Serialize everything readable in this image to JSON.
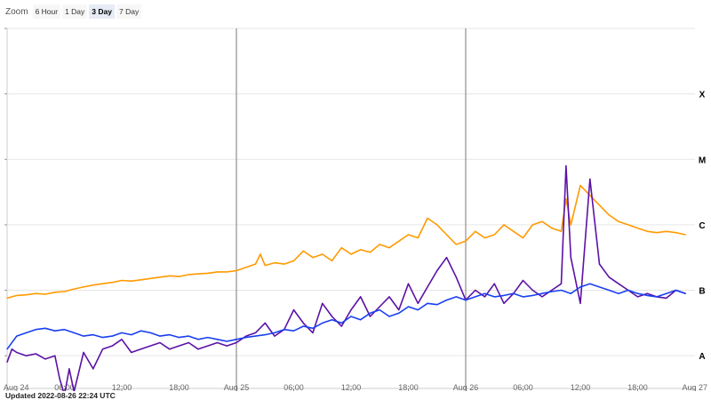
{
  "zoom": {
    "label": "Zoom",
    "buttons": [
      {
        "label": "6 Hour",
        "active": false
      },
      {
        "label": "1 Day",
        "active": false
      },
      {
        "label": "3 Day",
        "active": true
      },
      {
        "label": "7 Day",
        "active": false
      }
    ]
  },
  "updated_text": "Updated 2022-08-26 22:24 UTC",
  "colors": {
    "long_channel": "#ff9a00",
    "long_channel_alt": "#ff2020",
    "short_channel": "#1a3ff0",
    "short_channel_alt": "#5b12a6",
    "grid": "#e6e6e6",
    "day_line": "#777777"
  },
  "chart_data": {
    "type": "line",
    "title": "",
    "x_unit": "hours since start of Aug 24 UTC",
    "xlim": [
      0,
      72
    ],
    "ylim": [
      -8.5,
      -3.0
    ],
    "y_scale": "log10 flux",
    "x_ticks": [
      {
        "x": 0,
        "label": "Aug 24"
      },
      {
        "x": 6,
        "label": "06:00"
      },
      {
        "x": 12,
        "label": "12:00"
      },
      {
        "x": 18,
        "label": "18:00"
      },
      {
        "x": 24,
        "label": "Aug 25"
      },
      {
        "x": 30,
        "label": "06:00"
      },
      {
        "x": 36,
        "label": "12:00"
      },
      {
        "x": 42,
        "label": "18:00"
      },
      {
        "x": 48,
        "label": "Aug 26"
      },
      {
        "x": 54,
        "label": "06:00"
      },
      {
        "x": 60,
        "label": "12:00"
      },
      {
        "x": 66,
        "label": "18:00"
      },
      {
        "x": 72,
        "label": "Aug 27"
      }
    ],
    "day_boundaries": [
      24,
      48
    ],
    "flare_classes": [
      {
        "label": "X",
        "y": -4.0
      },
      {
        "label": "M",
        "y": -5.0
      },
      {
        "label": "C",
        "y": -6.0
      },
      {
        "label": "B",
        "y": -7.0
      },
      {
        "label": "A",
        "y": -8.0
      }
    ],
    "grid": true,
    "series": [
      {
        "color": "#ff9a00",
        "x": [
          0,
          1,
          2,
          3,
          4,
          5,
          6,
          7,
          8,
          9,
          10,
          11,
          12,
          13,
          14,
          15,
          16,
          17,
          18,
          19,
          20,
          21,
          22,
          23,
          24,
          25,
          26,
          26.5,
          27,
          28,
          29,
          30,
          31,
          32,
          33,
          34,
          35,
          36,
          37,
          38,
          39,
          40,
          41,
          42,
          43,
          44,
          45,
          46,
          47,
          48,
          49,
          50,
          51,
          52,
          53,
          54,
          55,
          56,
          57,
          58,
          58.5,
          59,
          60,
          61,
          62,
          63,
          64,
          65,
          66,
          67,
          68,
          69,
          70,
          71
        ],
        "y": [
          -7.12,
          -7.08,
          -7.07,
          -7.05,
          -7.06,
          -7.03,
          -7.02,
          -6.98,
          -6.95,
          -6.92,
          -6.9,
          -6.88,
          -6.85,
          -6.86,
          -6.84,
          -6.82,
          -6.8,
          -6.78,
          -6.79,
          -6.76,
          -6.75,
          -6.74,
          -6.72,
          -6.72,
          -6.7,
          -6.65,
          -6.6,
          -6.45,
          -6.62,
          -6.58,
          -6.6,
          -6.55,
          -6.4,
          -6.5,
          -6.45,
          -6.55,
          -6.35,
          -6.45,
          -6.38,
          -6.42,
          -6.3,
          -6.35,
          -6.25,
          -6.15,
          -6.2,
          -5.9,
          -6.0,
          -6.15,
          -6.3,
          -6.25,
          -6.1,
          -6.2,
          -6.15,
          -6.0,
          -6.1,
          -6.2,
          -6.0,
          -5.95,
          -6.05,
          -6.1,
          -5.6,
          -6.0,
          -5.4,
          -5.55,
          -5.7,
          -5.85,
          -5.95,
          -6.0,
          -6.05,
          -6.1,
          -6.12,
          -6.1,
          -6.12,
          -6.15
        ]
      },
      {
        "color": "#5b12a6",
        "x": [
          0,
          0.5,
          1,
          2,
          3,
          4,
          5,
          5.5,
          6,
          6.5,
          7,
          8,
          9,
          10,
          11,
          12,
          13,
          14,
          15,
          16,
          17,
          18,
          19,
          20,
          21,
          22,
          23,
          24,
          25,
          26,
          27,
          28,
          29,
          30,
          31,
          32,
          33,
          34,
          35,
          36,
          37,
          38,
          39,
          40,
          41,
          42,
          43,
          44,
          45,
          46,
          47,
          48,
          49,
          50,
          51,
          52,
          53,
          54,
          55,
          56,
          57,
          58,
          58.5,
          59,
          60,
          61,
          62,
          63,
          64,
          65,
          66,
          67,
          68,
          69,
          70,
          71
        ],
        "y": [
          -8.1,
          -7.9,
          -7.95,
          -8.0,
          -7.97,
          -8.05,
          -8.0,
          -8.35,
          -8.6,
          -8.2,
          -8.55,
          -7.95,
          -8.2,
          -7.9,
          -7.85,
          -7.75,
          -7.95,
          -7.9,
          -7.85,
          -7.8,
          -7.9,
          -7.85,
          -7.8,
          -7.9,
          -7.85,
          -7.8,
          -7.85,
          -7.8,
          -7.7,
          -7.65,
          -7.5,
          -7.7,
          -7.6,
          -7.3,
          -7.5,
          -7.65,
          -7.2,
          -7.4,
          -7.55,
          -7.3,
          -7.1,
          -7.4,
          -7.25,
          -7.1,
          -7.3,
          -6.9,
          -7.2,
          -6.95,
          -6.7,
          -6.5,
          -6.8,
          -7.15,
          -7.0,
          -7.1,
          -6.9,
          -7.2,
          -7.05,
          -6.85,
          -7.0,
          -7.1,
          -7.0,
          -6.9,
          -5.1,
          -6.5,
          -7.2,
          -5.3,
          -6.6,
          -6.8,
          -6.9,
          -7.0,
          -7.1,
          -7.05,
          -7.1,
          -7.12,
          -7.0,
          -7.05
        ]
      },
      {
        "color": "#1a3ff0",
        "x": [
          0,
          1,
          2,
          3,
          4,
          5,
          6,
          7,
          8,
          9,
          10,
          11,
          12,
          13,
          14,
          15,
          16,
          17,
          18,
          19,
          20,
          21,
          22,
          23,
          24,
          25,
          26,
          27,
          28,
          29,
          30,
          31,
          32,
          33,
          34,
          35,
          36,
          37,
          38,
          39,
          40,
          41,
          42,
          43,
          44,
          45,
          46,
          47,
          48,
          49,
          50,
          51,
          52,
          53,
          54,
          55,
          56,
          57,
          58,
          59,
          60,
          61,
          62,
          63,
          64,
          65,
          66,
          67,
          68,
          69,
          70,
          71
        ],
        "y": [
          -7.9,
          -7.7,
          -7.65,
          -7.6,
          -7.58,
          -7.62,
          -7.6,
          -7.65,
          -7.7,
          -7.68,
          -7.72,
          -7.7,
          -7.65,
          -7.68,
          -7.62,
          -7.65,
          -7.7,
          -7.68,
          -7.72,
          -7.7,
          -7.75,
          -7.72,
          -7.75,
          -7.78,
          -7.75,
          -7.72,
          -7.7,
          -7.68,
          -7.65,
          -7.6,
          -7.62,
          -7.55,
          -7.58,
          -7.5,
          -7.45,
          -7.5,
          -7.4,
          -7.45,
          -7.35,
          -7.3,
          -7.4,
          -7.35,
          -7.25,
          -7.3,
          -7.2,
          -7.22,
          -7.15,
          -7.1,
          -7.15,
          -7.1,
          -7.05,
          -7.1,
          -7.08,
          -7.05,
          -7.1,
          -7.08,
          -7.05,
          -7.02,
          -7.0,
          -7.05,
          -6.95,
          -6.9,
          -6.95,
          -7.0,
          -7.05,
          -7.0,
          -7.05,
          -7.08,
          -7.1,
          -7.05,
          -7.0,
          -7.05
        ]
      }
    ]
  }
}
